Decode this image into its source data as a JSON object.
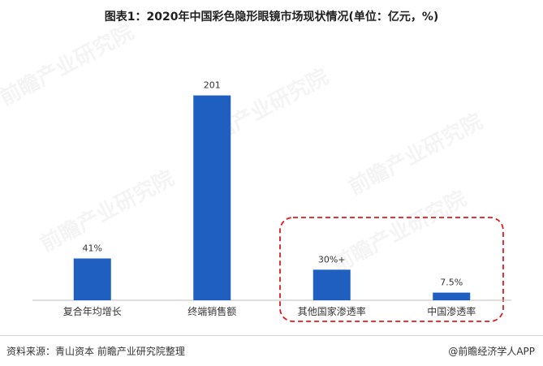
{
  "title": "图表1：2020年中国彩色隐形眼镜市场现状情况(单位：亿元，%)",
  "footer": {
    "source": "资料来源：青山资本 前瞻产业研究院整理",
    "brand": "@前瞻经济学人APP"
  },
  "watermark": "前瞻产业研究院",
  "colors": {
    "bar": "#1f5fbf",
    "highlight_border": "#e0191e",
    "axis": "#bfbfbf"
  },
  "chart_data": {
    "type": "bar",
    "title": "图表1：2020年中国彩色隐形眼镜市场现状情况(单位：亿元，%)",
    "categories": [
      "复合年均增长",
      "终端销售额",
      "其他国家渗透率",
      "中国渗透率"
    ],
    "values": [
      41,
      201,
      30,
      7.5
    ],
    "data_labels": [
      "41%",
      "201",
      "30%+",
      "7.5%"
    ],
    "xlabel": "",
    "ylabel": "",
    "ylim": [
      0,
      215
    ],
    "grid": false,
    "legend": "none",
    "highlighted_categories": [
      "其他国家渗透率",
      "中国渗透率"
    ]
  }
}
